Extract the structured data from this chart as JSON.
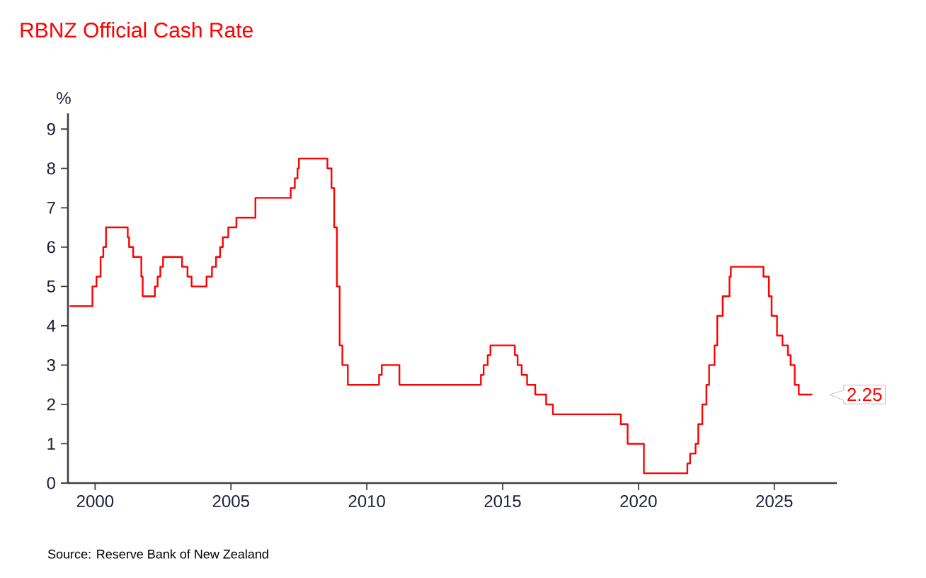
{
  "chart_data": {
    "type": "step",
    "title": "RBNZ Official Cash Rate",
    "ylabel": "%",
    "color": "#ff0000",
    "x": [
      1999.06,
      1999.9,
      2000.05,
      2000.2,
      2000.3,
      2000.4,
      2001.2,
      2001.25,
      2001.4,
      2001.7,
      2001.75,
      2002.2,
      2002.3,
      2002.4,
      2002.5,
      2003.2,
      2003.4,
      2003.55,
      2004.1,
      2004.3,
      2004.45,
      2004.6,
      2004.7,
      2004.9,
      2005.2,
      2005.9,
      2007.2,
      2007.35,
      2007.45,
      2007.5,
      2008.55,
      2008.7,
      2008.8,
      2008.9,
      2009.0,
      2009.1,
      2009.3,
      2010.45,
      2010.55,
      2011.2,
      2014.2,
      2014.3,
      2014.45,
      2014.55,
      2015.45,
      2015.55,
      2015.7,
      2015.9,
      2016.2,
      2016.6,
      2016.85,
      2019.35,
      2019.6,
      2020.2,
      2021.8,
      2021.9,
      2022.1,
      2022.2,
      2022.35,
      2022.5,
      2022.6,
      2022.8,
      2022.9,
      2023.1,
      2023.35,
      2023.4,
      2024.6,
      2024.8,
      2024.9,
      2025.1,
      2025.3,
      2025.5,
      2025.6,
      2025.75,
      2025.9,
      2026.4
    ],
    "values": [
      4.5,
      5.0,
      5.25,
      5.75,
      6.0,
      6.5,
      6.25,
      6.0,
      5.75,
      5.25,
      4.75,
      5.0,
      5.25,
      5.5,
      5.75,
      5.5,
      5.25,
      5.0,
      5.25,
      5.5,
      5.75,
      6.0,
      6.25,
      6.5,
      6.75,
      7.25,
      7.5,
      7.75,
      8.0,
      8.25,
      8.0,
      7.5,
      6.5,
      5.0,
      3.5,
      3.0,
      2.5,
      2.75,
      3.0,
      2.5,
      2.75,
      3.0,
      3.25,
      3.5,
      3.25,
      3.0,
      2.75,
      2.5,
      2.25,
      2.0,
      1.75,
      1.5,
      1.0,
      0.25,
      0.5,
      0.75,
      1.0,
      1.5,
      2.0,
      2.5,
      3.0,
      3.5,
      4.25,
      4.75,
      5.25,
      5.5,
      5.25,
      4.75,
      4.25,
      3.75,
      3.5,
      3.25,
      3.0,
      2.5,
      2.25,
      2.25
    ],
    "xlim": [
      1999.0,
      2027.3
    ],
    "ylim": [
      0,
      9.4
    ],
    "xticks": [
      2000,
      2005,
      2010,
      2015,
      2020,
      2025
    ],
    "yticks": [
      0,
      1,
      2,
      3,
      4,
      5,
      6,
      7,
      8,
      9
    ],
    "annotations": [
      {
        "text": "2.25",
        "x": 2026.4,
        "y": 2.25
      },
      "Source: Reserve Bank of New Zealand"
    ]
  }
}
